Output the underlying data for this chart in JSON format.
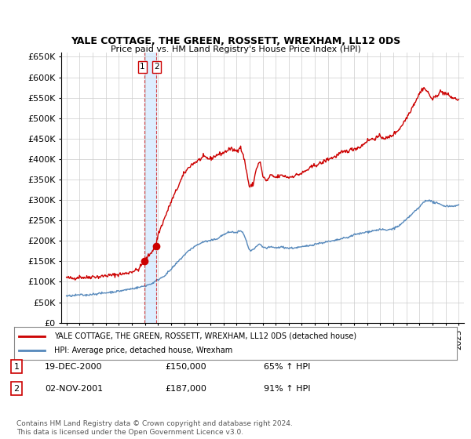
{
  "title": "YALE COTTAGE, THE GREEN, ROSSETT, WREXHAM, LL12 0DS",
  "subtitle": "Price paid vs. HM Land Registry's House Price Index (HPI)",
  "legend_label_red": "YALE COTTAGE, THE GREEN, ROSSETT, WREXHAM, LL12 0DS (detached house)",
  "legend_label_blue": "HPI: Average price, detached house, Wrexham",
  "footer": "Contains HM Land Registry data © Crown copyright and database right 2024.\nThis data is licensed under the Open Government Licence v3.0.",
  "transaction1_date": "19-DEC-2000",
  "transaction1_price": "£150,000",
  "transaction1_hpi": "65% ↑ HPI",
  "transaction2_date": "02-NOV-2001",
  "transaction2_price": "£187,000",
  "transaction2_hpi": "91% ↑ HPI",
  "sale1_x": 2000.96,
  "sale1_y": 150000,
  "sale2_x": 2001.84,
  "sale2_y": 187000,
  "vline1_x": 2000.96,
  "vline2_x": 2001.84,
  "red_color": "#cc0000",
  "blue_color": "#5588bb",
  "shade_color": "#ddeeff",
  "background_color": "#ffffff",
  "grid_color": "#cccccc",
  "ylim": [
    0,
    660000
  ],
  "xlim_start": 1994.6,
  "xlim_end": 2025.4,
  "yticks": [
    0,
    50000,
    100000,
    150000,
    200000,
    250000,
    300000,
    350000,
    400000,
    450000,
    500000,
    550000,
    600000,
    650000
  ],
  "xticks": [
    1995,
    1996,
    1997,
    1998,
    1999,
    2000,
    2001,
    2002,
    2003,
    2004,
    2005,
    2006,
    2007,
    2008,
    2009,
    2010,
    2011,
    2012,
    2013,
    2014,
    2015,
    2016,
    2017,
    2018,
    2019,
    2020,
    2021,
    2022,
    2023,
    2024,
    2025
  ],
  "red_anchors": [
    [
      1995.0,
      110000
    ],
    [
      1995.5,
      108000
    ],
    [
      1996.0,
      112000
    ],
    [
      1996.5,
      110000
    ],
    [
      1997.0,
      113000
    ],
    [
      1997.5,
      112000
    ],
    [
      1998.0,
      115000
    ],
    [
      1998.5,
      116000
    ],
    [
      1999.0,
      118000
    ],
    [
      1999.5,
      120000
    ],
    [
      2000.0,
      125000
    ],
    [
      2000.5,
      130000
    ],
    [
      2000.96,
      150000
    ],
    [
      2001.0,
      152000
    ],
    [
      2001.84,
      187000
    ],
    [
      2002.0,
      215000
    ],
    [
      2002.5,
      255000
    ],
    [
      2003.0,
      295000
    ],
    [
      2003.5,
      330000
    ],
    [
      2004.0,
      365000
    ],
    [
      2004.5,
      385000
    ],
    [
      2005.0,
      395000
    ],
    [
      2005.5,
      405000
    ],
    [
      2006.0,
      400000
    ],
    [
      2006.5,
      410000
    ],
    [
      2007.0,
      415000
    ],
    [
      2007.5,
      425000
    ],
    [
      2008.0,
      420000
    ],
    [
      2008.3,
      430000
    ],
    [
      2008.6,
      400000
    ],
    [
      2009.0,
      330000
    ],
    [
      2009.3,
      340000
    ],
    [
      2009.5,
      375000
    ],
    [
      2009.8,
      395000
    ],
    [
      2010.0,
      360000
    ],
    [
      2010.3,
      345000
    ],
    [
      2010.6,
      360000
    ],
    [
      2011.0,
      355000
    ],
    [
      2011.5,
      360000
    ],
    [
      2012.0,
      355000
    ],
    [
      2012.5,
      360000
    ],
    [
      2013.0,
      365000
    ],
    [
      2013.5,
      375000
    ],
    [
      2014.0,
      385000
    ],
    [
      2014.5,
      390000
    ],
    [
      2015.0,
      400000
    ],
    [
      2015.5,
      405000
    ],
    [
      2016.0,
      415000
    ],
    [
      2016.5,
      420000
    ],
    [
      2017.0,
      425000
    ],
    [
      2017.5,
      430000
    ],
    [
      2018.0,
      445000
    ],
    [
      2018.5,
      450000
    ],
    [
      2019.0,
      455000
    ],
    [
      2019.5,
      450000
    ],
    [
      2020.0,
      460000
    ],
    [
      2020.5,
      475000
    ],
    [
      2021.0,
      500000
    ],
    [
      2021.5,
      530000
    ],
    [
      2022.0,
      560000
    ],
    [
      2022.3,
      575000
    ],
    [
      2022.6,
      565000
    ],
    [
      2023.0,
      545000
    ],
    [
      2023.3,
      555000
    ],
    [
      2023.6,
      565000
    ],
    [
      2024.0,
      560000
    ],
    [
      2024.5,
      550000
    ],
    [
      2025.0,
      545000
    ]
  ],
  "blue_anchors": [
    [
      1995.0,
      65000
    ],
    [
      1995.5,
      66000
    ],
    [
      1996.0,
      68000
    ],
    [
      1996.5,
      67000
    ],
    [
      1997.0,
      70000
    ],
    [
      1997.5,
      71000
    ],
    [
      1998.0,
      73000
    ],
    [
      1998.5,
      75000
    ],
    [
      1999.0,
      77000
    ],
    [
      1999.5,
      80000
    ],
    [
      2000.0,
      83000
    ],
    [
      2000.5,
      86000
    ],
    [
      2001.0,
      90000
    ],
    [
      2001.5,
      95000
    ],
    [
      2002.0,
      105000
    ],
    [
      2002.5,
      115000
    ],
    [
      2003.0,
      130000
    ],
    [
      2003.5,
      148000
    ],
    [
      2004.0,
      165000
    ],
    [
      2004.5,
      180000
    ],
    [
      2005.0,
      190000
    ],
    [
      2005.5,
      198000
    ],
    [
      2006.0,
      200000
    ],
    [
      2006.5,
      205000
    ],
    [
      2007.0,
      215000
    ],
    [
      2007.5,
      222000
    ],
    [
      2008.0,
      220000
    ],
    [
      2008.3,
      225000
    ],
    [
      2008.6,
      215000
    ],
    [
      2009.0,
      175000
    ],
    [
      2009.3,
      178000
    ],
    [
      2009.5,
      185000
    ],
    [
      2009.8,
      192000
    ],
    [
      2010.0,
      185000
    ],
    [
      2010.3,
      182000
    ],
    [
      2010.6,
      185000
    ],
    [
      2011.0,
      183000
    ],
    [
      2011.5,
      185000
    ],
    [
      2012.0,
      182000
    ],
    [
      2012.5,
      183000
    ],
    [
      2013.0,
      185000
    ],
    [
      2013.5,
      188000
    ],
    [
      2014.0,
      192000
    ],
    [
      2014.5,
      195000
    ],
    [
      2015.0,
      198000
    ],
    [
      2015.5,
      200000
    ],
    [
      2016.0,
      205000
    ],
    [
      2016.5,
      208000
    ],
    [
      2017.0,
      215000
    ],
    [
      2017.5,
      218000
    ],
    [
      2018.0,
      222000
    ],
    [
      2018.5,
      225000
    ],
    [
      2019.0,
      228000
    ],
    [
      2019.5,
      226000
    ],
    [
      2020.0,
      230000
    ],
    [
      2020.5,
      238000
    ],
    [
      2021.0,
      252000
    ],
    [
      2021.5,
      268000
    ],
    [
      2022.0,
      282000
    ],
    [
      2022.3,
      295000
    ],
    [
      2022.6,
      300000
    ],
    [
      2023.0,
      295000
    ],
    [
      2023.5,
      290000
    ],
    [
      2024.0,
      285000
    ],
    [
      2024.5,
      285000
    ],
    [
      2025.0,
      287000
    ]
  ]
}
